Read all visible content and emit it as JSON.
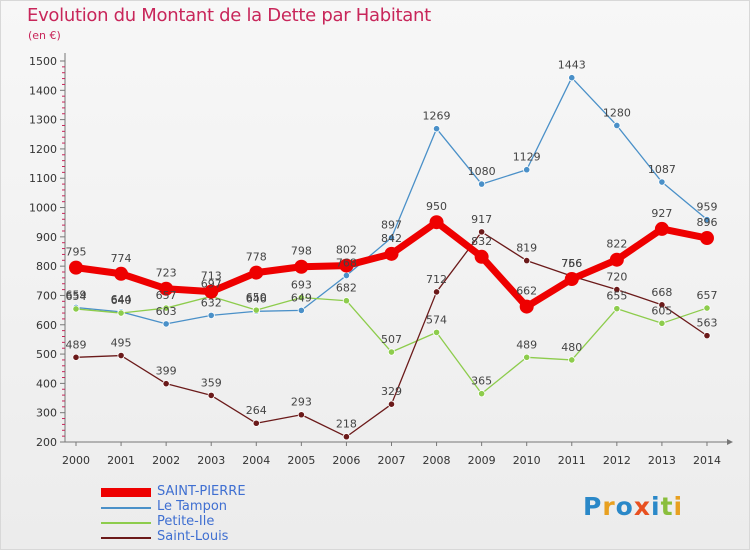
{
  "page": {
    "title": "Evolution du Montant de la Dette par Habitant",
    "subtitle": "(en €)",
    "logo": "Proxiti"
  },
  "chart_data": {
    "type": "line",
    "title": "Evolution du Montant de la Dette par Habitant",
    "subtitle": "(en €)",
    "x": [
      2000,
      2001,
      2002,
      2003,
      2004,
      2005,
      2006,
      2007,
      2008,
      2009,
      2010,
      2011,
      2012,
      2013,
      2014
    ],
    "ylim": [
      200,
      1500
    ],
    "yticks": [
      200,
      300,
      400,
      500,
      600,
      700,
      800,
      900,
      1000,
      1100,
      1200,
      1300,
      1400,
      1500
    ],
    "grid": false,
    "legend": "bottom-left",
    "series": [
      {
        "name": "SAINT-PIERRE",
        "color": "#ee0000",
        "values": [
          795,
          774,
          723,
          713,
          778,
          798,
          802,
          842,
          950,
          832,
          662,
          756,
          822,
          927,
          896
        ]
      },
      {
        "name": "Le Tampon",
        "color": "#4a90c8",
        "values": [
          659,
          644,
          603,
          632,
          646,
          649,
          768,
          897,
          1269,
          1080,
          1129,
          1443,
          1280,
          1087,
          959
        ]
      },
      {
        "name": "Petite-Ile",
        "color": "#8dcc4c",
        "values": [
          654,
          640,
          657,
          697,
          650,
          693,
          682,
          507,
          574,
          365,
          489,
          480,
          655,
          605,
          657
        ]
      },
      {
        "name": "Saint-Louis",
        "color": "#6b1a1a",
        "values": [
          489,
          495,
          399,
          359,
          264,
          293,
          218,
          329,
          712,
          917,
          819,
          766,
          720,
          668,
          563
        ]
      }
    ]
  }
}
